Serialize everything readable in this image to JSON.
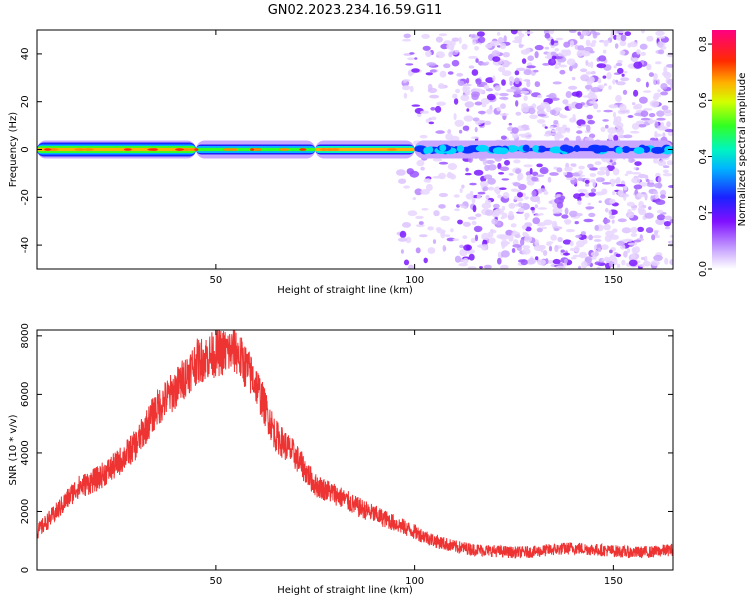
{
  "figure": {
    "title": "GN02.2023.234.16.59.G11"
  },
  "chart_data": [
    {
      "type": "heatmap",
      "xlabel": "Height of straight line (km)",
      "ylabel": "Frequency (Hz)",
      "xlim": [
        5,
        165
      ],
      "ylim": [
        -50,
        50
      ],
      "x_ticks": [
        50,
        100,
        150
      ],
      "y_ticks": [
        -40,
        -20,
        0,
        20,
        40
      ],
      "grid": false,
      "colorbar": {
        "label": "Normalized spectral amplitude",
        "range": [
          0.0,
          0.85
        ],
        "ticks": [
          "0.0",
          "0.2",
          "0.4",
          "0.6",
          "0.8"
        ]
      },
      "band": {
        "center_hz": 0,
        "segments": [
          {
            "x": [
              5,
              45
            ],
            "amplitude": 0.82
          },
          {
            "x": [
              45,
              75
            ],
            "amplitude": 0.6
          },
          {
            "x": [
              75,
              100
            ],
            "amplitude": 0.75
          },
          {
            "x": [
              100,
              165
            ],
            "amplitude": 0.25
          }
        ]
      },
      "noise_onset_km": 95
    },
    {
      "type": "line",
      "xlabel": "Height of straight line (km)",
      "ylabel": "SNR (10 * v/v)",
      "xlim": [
        5,
        165
      ],
      "ylim": [
        0,
        8200
      ],
      "x_ticks": [
        50,
        100,
        150
      ],
      "y_ticks": [
        0,
        2000,
        4000,
        6000,
        8000
      ],
      "grid": false,
      "series": [
        {
          "color": "#ee3333",
          "x": [
            5,
            10,
            15,
            20,
            25,
            30,
            35,
            40,
            45,
            50,
            55,
            60,
            65,
            70,
            75,
            80,
            85,
            90,
            95,
            100,
            105,
            110,
            115,
            120,
            125,
            130,
            135,
            140,
            145,
            150,
            155,
            160,
            165
          ],
          "y": [
            1300,
            2000,
            2800,
            3100,
            3600,
            4300,
            5500,
            6200,
            7100,
            7400,
            7500,
            6400,
            4600,
            3900,
            2900,
            2600,
            2200,
            1900,
            1600,
            1300,
            1000,
            800,
            700,
            650,
            600,
            620,
            700,
            750,
            700,
            650,
            600,
            620,
            700
          ]
        }
      ]
    }
  ]
}
